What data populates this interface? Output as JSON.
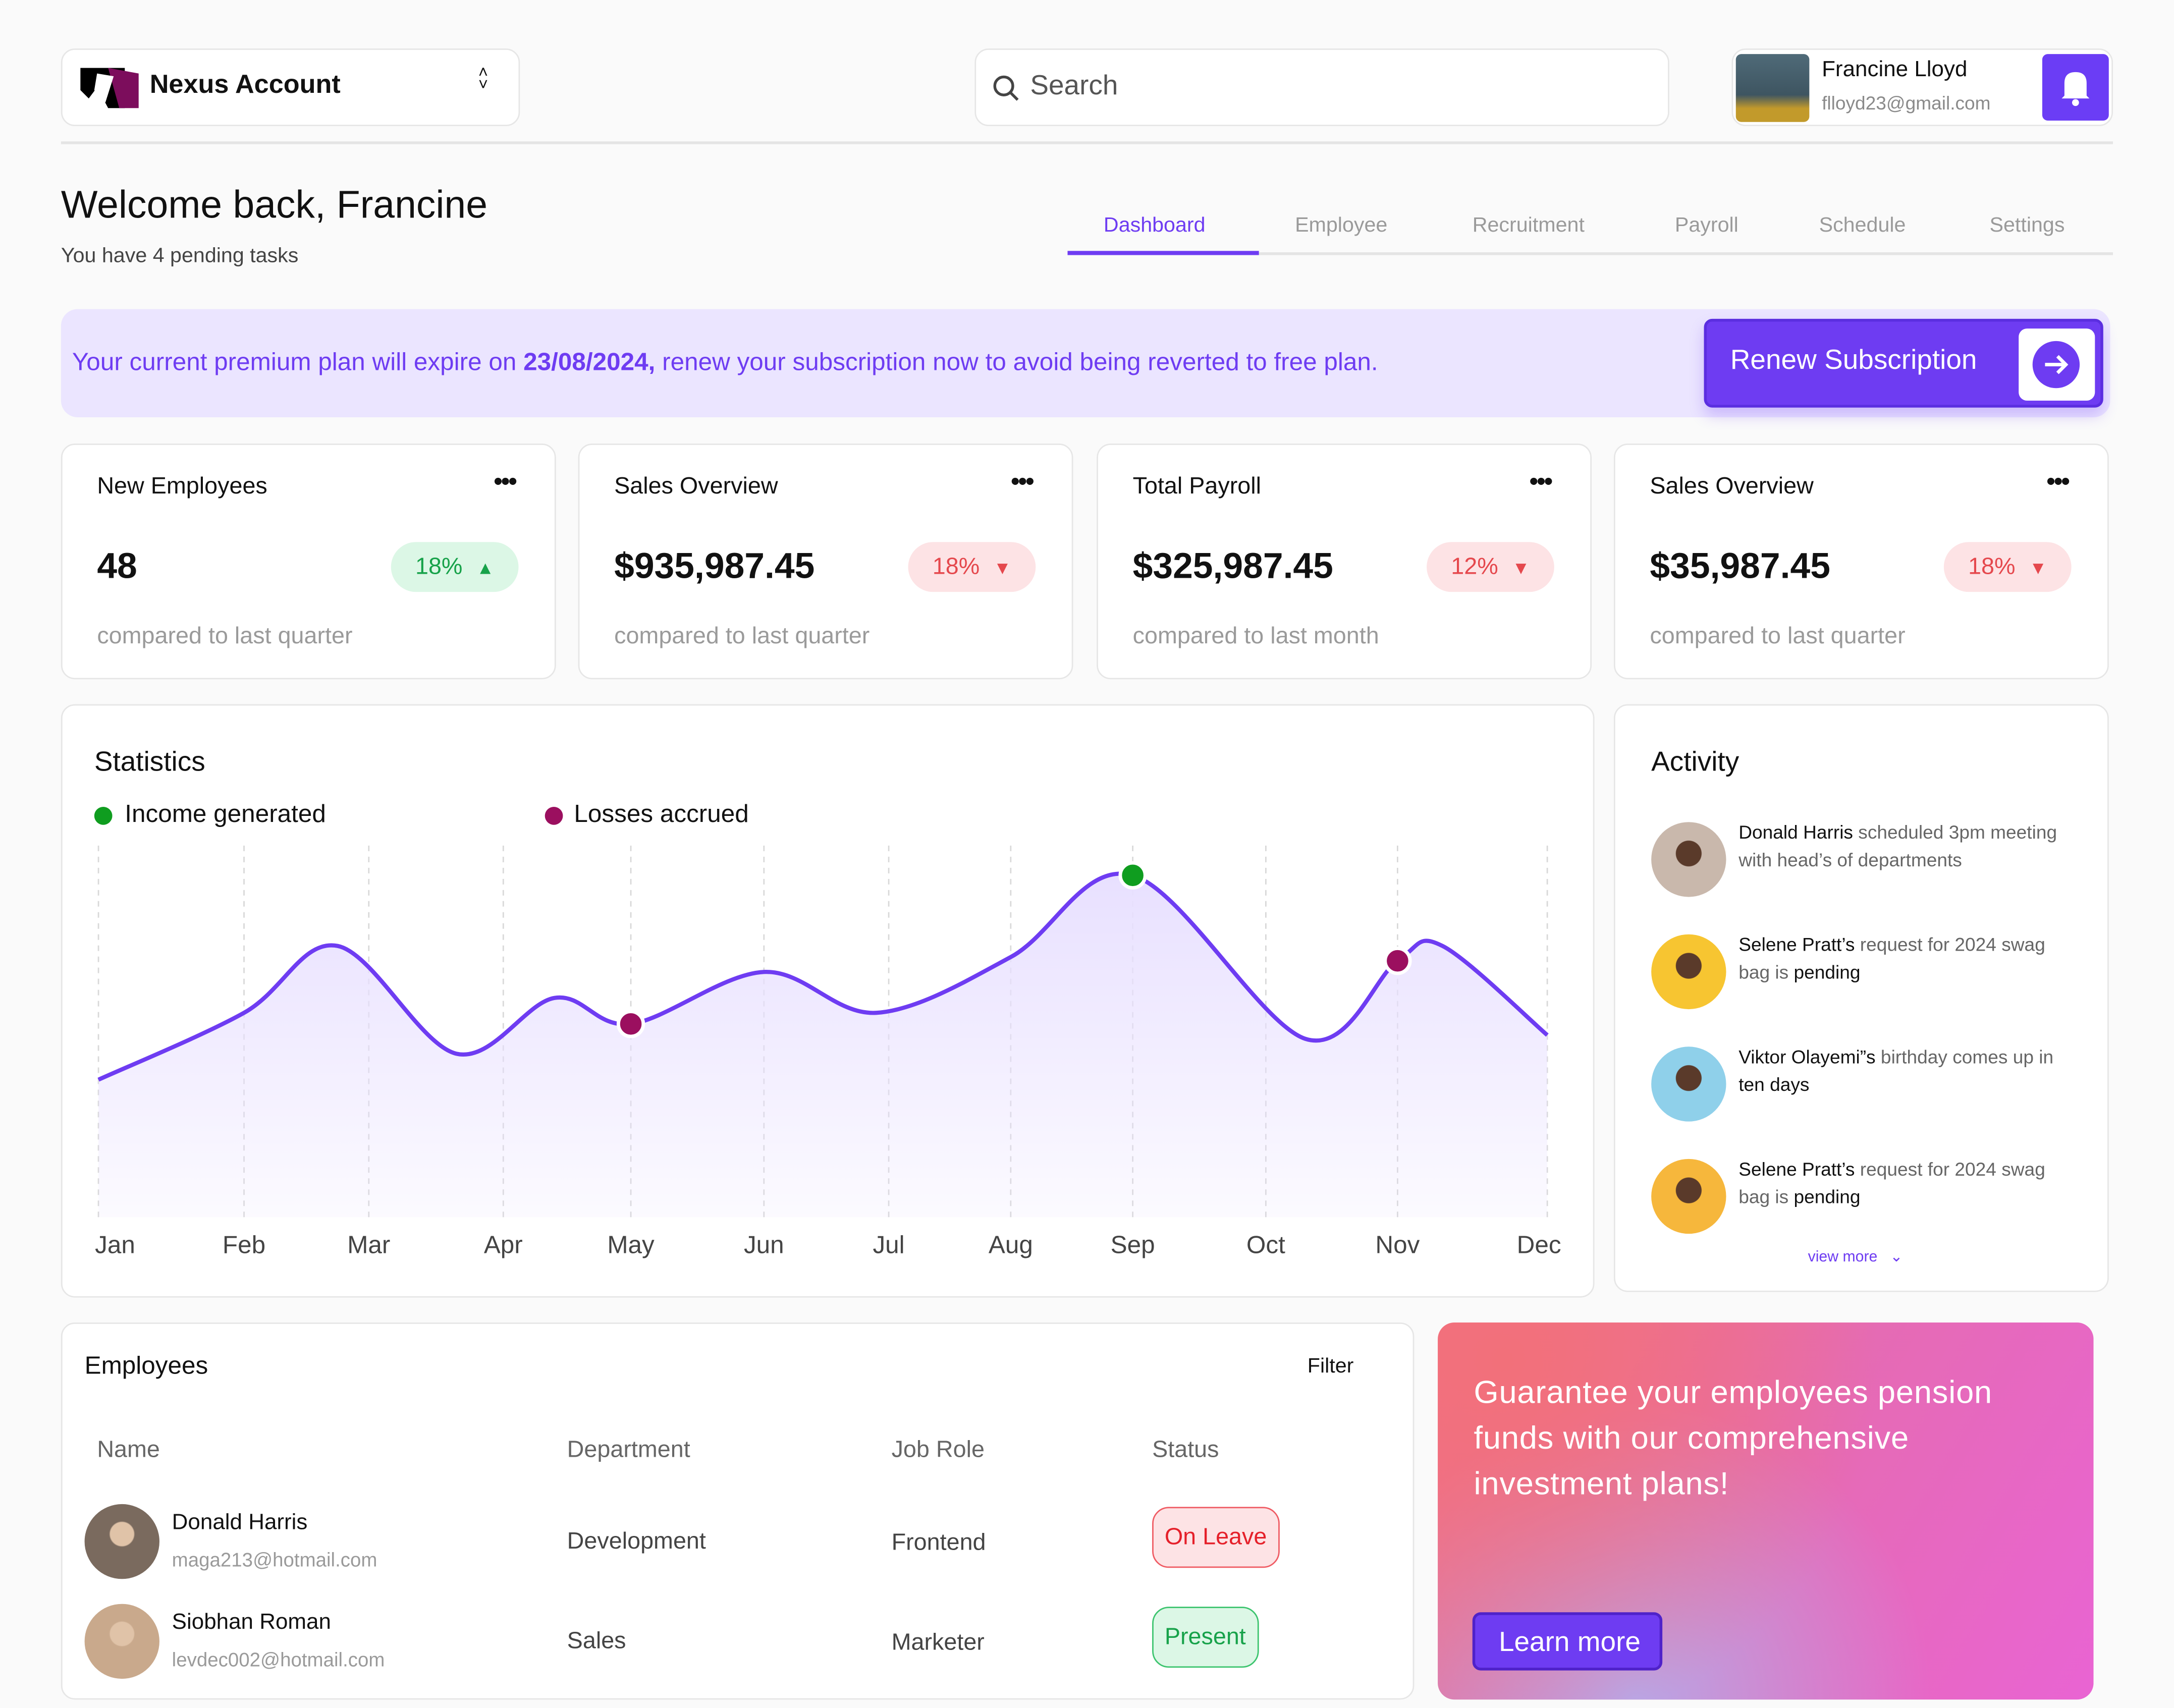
{
  "header": {
    "account_name": "Nexus Account",
    "search_placeholder": "Search",
    "user_name": "Francine Lloyd",
    "user_email": "flloyd23@gmail.com"
  },
  "welcome": {
    "title": "Welcome back, Francine",
    "subtitle": "You have 4 pending tasks"
  },
  "tabs": [
    {
      "label": "Dashboard",
      "active": true
    },
    {
      "label": "Employee"
    },
    {
      "label": "Recruitment"
    },
    {
      "label": "Payroll"
    },
    {
      "label": "Schedule"
    },
    {
      "label": "Settings"
    }
  ],
  "banner": {
    "text_before": "Your current premium plan will expire on ",
    "date": "23/08/2024,",
    "text_after": " renew your subscription now to avoid being reverted to free plan.",
    "button_label": "Renew Subscription"
  },
  "stats": [
    {
      "title": "New Employees",
      "value": "48",
      "change": "18%",
      "direction": "up",
      "comparison": "compared to last quarter"
    },
    {
      "title": "Sales Overview",
      "value": "$935,987.45",
      "change": "18%",
      "direction": "down",
      "comparison": "compared to last quarter"
    },
    {
      "title": "Total Payroll",
      "value": "$325,987.45",
      "change": "12%",
      "direction": "down",
      "comparison": "compared to last month"
    },
    {
      "title": "Sales Overview",
      "value": "$35,987.45",
      "change": "18%",
      "direction": "down",
      "comparison": "compared to last quarter"
    }
  ],
  "chart_data": {
    "type": "line",
    "title": "Statistics",
    "legend": [
      {
        "name": "Income generated",
        "color": "#0f9d1f"
      },
      {
        "name": "Losses accrued",
        "color": "#9b0f5f"
      }
    ],
    "categories": [
      "Jan",
      "Feb",
      "Mar",
      "Apr",
      "May",
      "Jun",
      "Jul",
      "Aug",
      "Sep",
      "Oct",
      "Nov",
      "Dec"
    ],
    "curve": [
      [
        0,
        37
      ],
      [
        1,
        55
      ],
      [
        1.75,
        73
      ],
      [
        2.65,
        44
      ],
      [
        3.4,
        59
      ],
      [
        4,
        52
      ],
      [
        5,
        66
      ],
      [
        5.9,
        55
      ],
      [
        7,
        70
      ],
      [
        8,
        92
      ],
      [
        9.3,
        48
      ],
      [
        10,
        69
      ],
      [
        10.3,
        73
      ],
      [
        11,
        49
      ]
    ],
    "ylim": [
      0,
      100
    ],
    "line_color": "#6e3cf2",
    "markers": [
      {
        "series": "Losses accrued",
        "x": 4,
        "y": 52
      },
      {
        "series": "Income generated",
        "x": 8,
        "y": 92
      },
      {
        "series": "Losses accrued",
        "x": 10,
        "y": 69
      }
    ]
  },
  "activity": {
    "title": "Activity",
    "view_more": "view more",
    "items": [
      {
        "name": "Donald Harris",
        "text": " scheduled 3pm meeting with head’s of departments",
        "tail": "",
        "color": "#c9b8ac"
      },
      {
        "name": "Selene Pratt’s",
        "text": " request for 2024 swag bag is ",
        "tail": "pending",
        "color": "#f7c531"
      },
      {
        "name": "Viktor Olayemi”s",
        "text": " birthday comes up in ",
        "tail": "ten days",
        "color": "#8fd0ea"
      },
      {
        "name": "Selene Pratt’s",
        "text": " request for 2024 swag bag is ",
        "tail": "pending",
        "color": "#f6b73c"
      }
    ]
  },
  "employees": {
    "title": "Employees",
    "filter": "Filter",
    "columns": [
      "Name",
      "Department",
      "Job Role",
      "Status"
    ],
    "rows": [
      {
        "name": "Donald Harris",
        "email": "maga213@hotmail.com",
        "department": "Development",
        "role": "Frontend",
        "status": "On Leave",
        "avatar": "#7a6a5e"
      },
      {
        "name": "Siobhan Roman",
        "email": "levdec002@hotmail.com",
        "department": "Sales",
        "role": "Marketer",
        "status": "Present",
        "avatar": "#c9a98c"
      }
    ]
  },
  "promo": {
    "text": "Guarantee your employees pension funds with our comprehensive investment plans!",
    "button": "Learn more"
  }
}
